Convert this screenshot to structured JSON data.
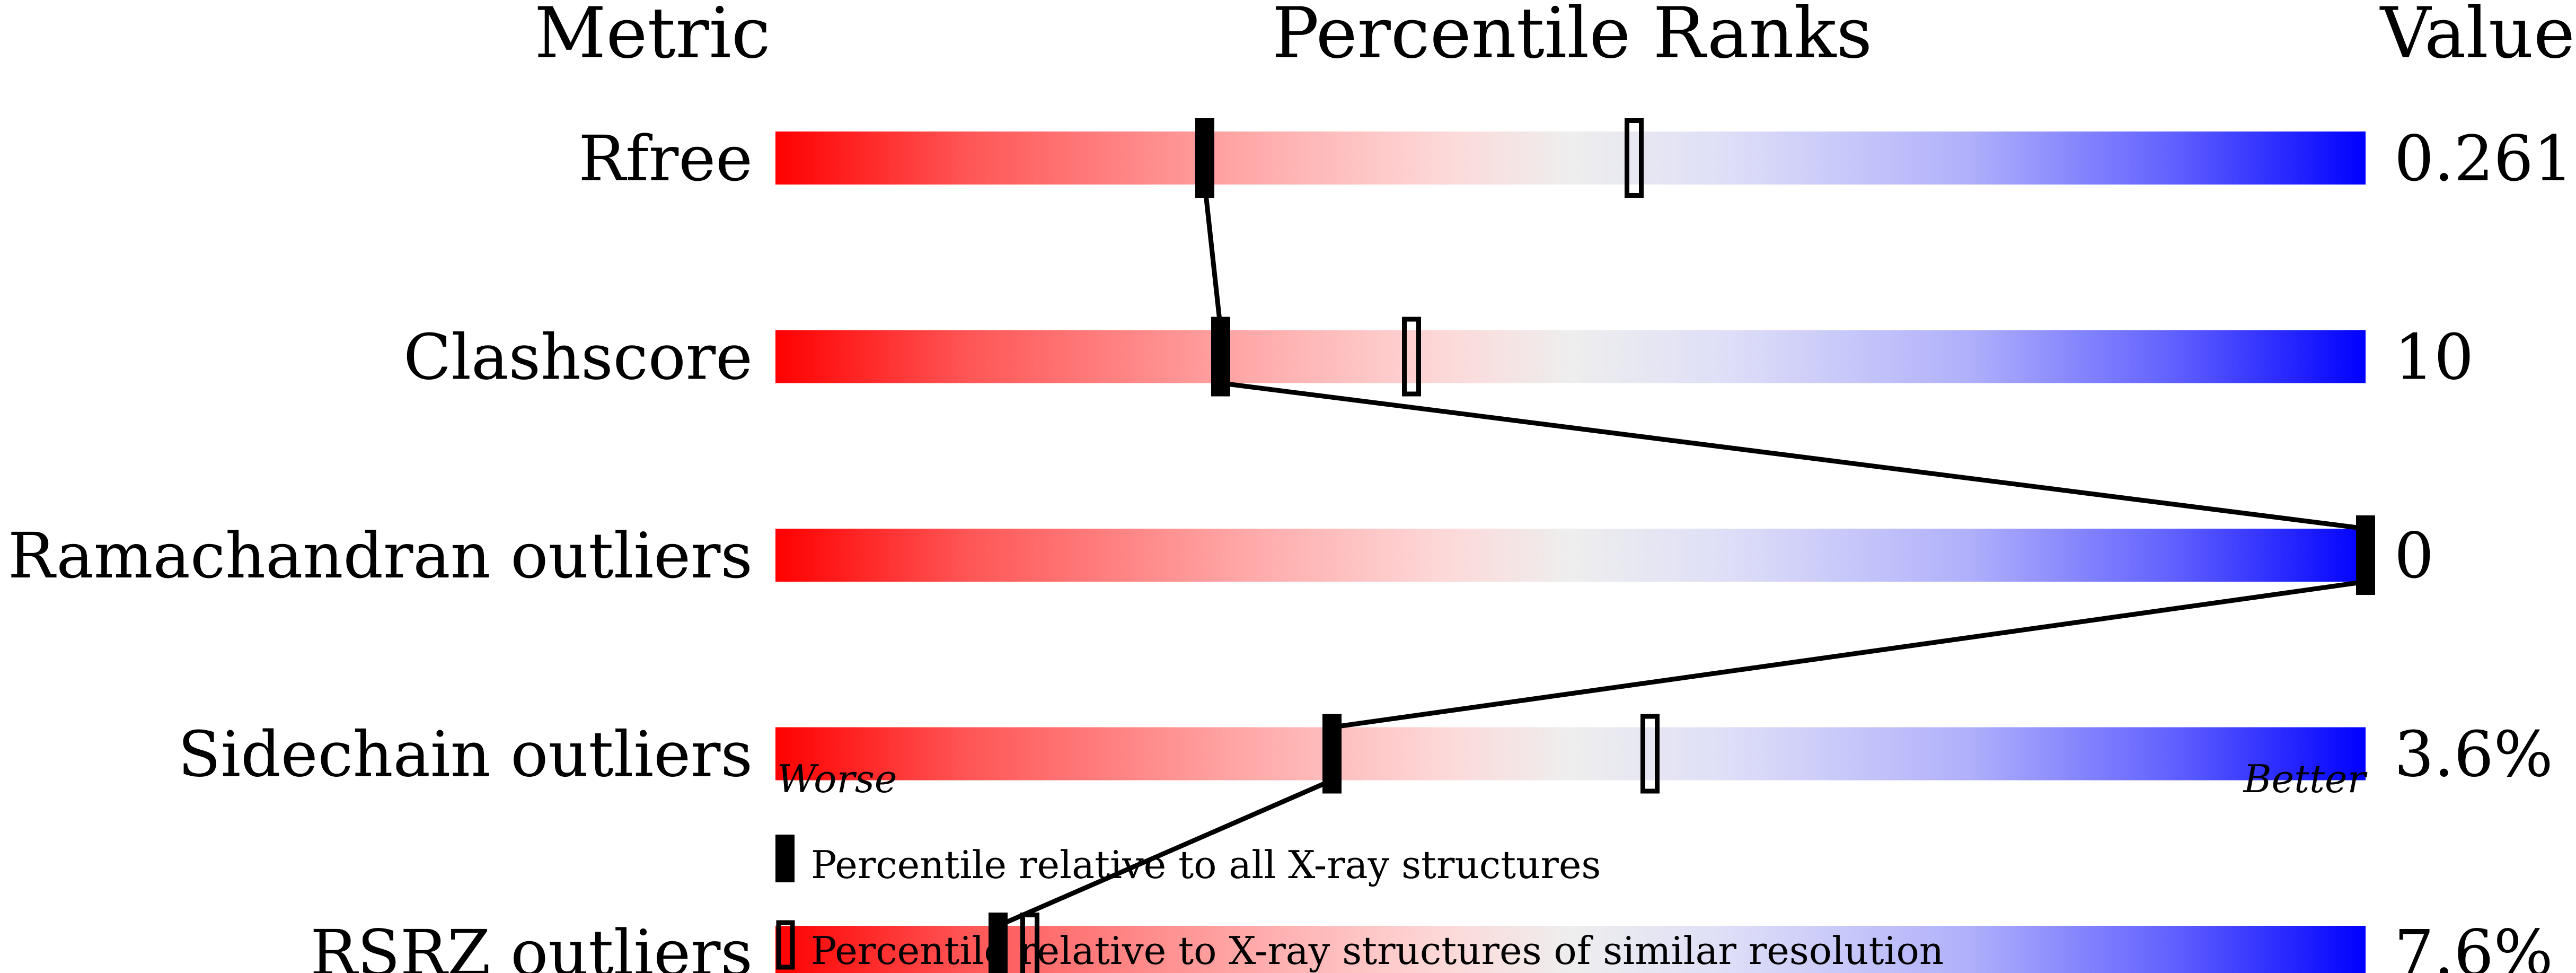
{
  "chart_data": {
    "type": "percentile-slider",
    "headers": {
      "metric": "Metric",
      "ranks": "Percentile Ranks",
      "value": "Value"
    },
    "axis": {
      "left": "Worse",
      "right": "Better",
      "range": [
        0,
        100
      ]
    },
    "gradient_colors": {
      "worse": "#ff0000",
      "middle": "#eeeeee",
      "better": "#0000ff"
    },
    "metrics": [
      {
        "name": "Rfree",
        "value": "0.261",
        "percentile_all": 27,
        "percentile_similar": 54
      },
      {
        "name": "Clashscore",
        "value": "10",
        "percentile_all": 28,
        "percentile_similar": 40
      },
      {
        "name": "Ramachandran outliers",
        "value": "0",
        "percentile_all": 100,
        "percentile_similar": null
      },
      {
        "name": "Sidechain outliers",
        "value": "3.6%",
        "percentile_all": 35,
        "percentile_similar": 55
      },
      {
        "name": "RSRZ outliers",
        "value": "7.6%",
        "percentile_all": 14,
        "percentile_similar": 16
      }
    ],
    "legend": {
      "all": "Percentile relative to all X-ray structures",
      "similar": "Percentile relative to X-ray structures of similar resolution"
    }
  }
}
